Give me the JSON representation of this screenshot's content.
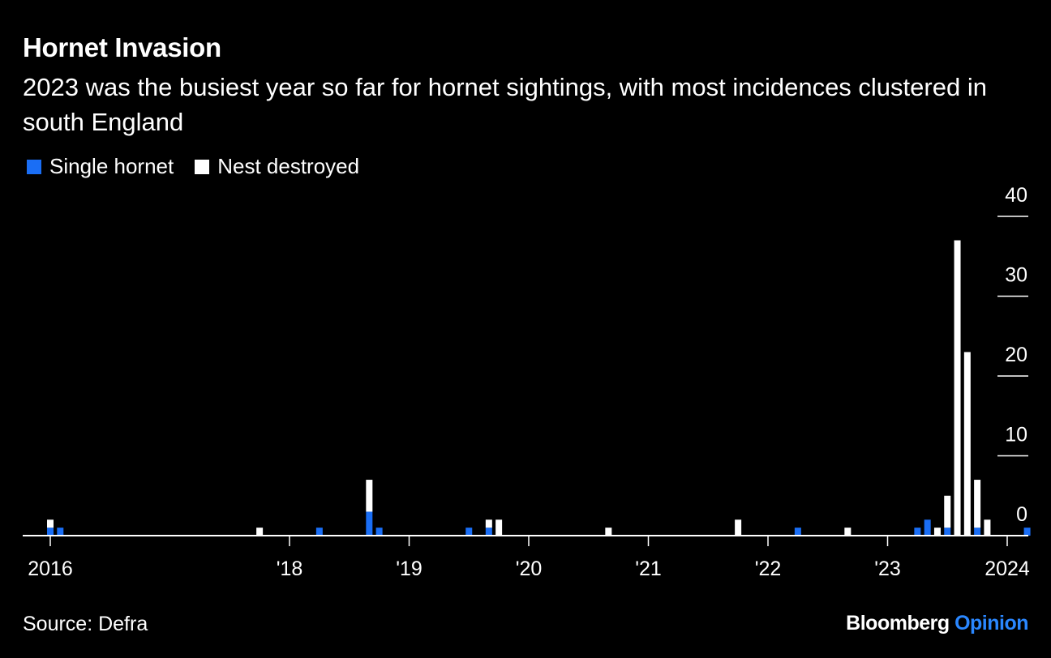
{
  "header": {
    "title": "Hornet Invasion",
    "subtitle": "2023 was the busiest year so far for hornet sightings, with most incidences clustered in south England"
  },
  "footer": {
    "source": "Source: Defra",
    "brand_main": "Bloomberg",
    "brand_accent": "Opinion"
  },
  "colors": {
    "background": "#000000",
    "single_hornet": "#1a6ef5",
    "nest_destroyed": "#ffffff",
    "brand_accent": "#2a87ff"
  },
  "chart_data": {
    "type": "bar",
    "stacked": true,
    "title": "Hornet Invasion",
    "subtitle": "2023 was the busiest year so far for hornet sightings, with most incidences clustered in south England",
    "xlabel": "",
    "ylabel": "",
    "ylim": [
      0,
      40
    ],
    "yticks": [
      0,
      10,
      20,
      30,
      40
    ],
    "y_axis_side": "right",
    "xlim": [
      2016.0,
      2024.5
    ],
    "xticks": [
      {
        "value": 2016,
        "label": "2016"
      },
      {
        "value": 2018,
        "label": "'18"
      },
      {
        "value": 2019,
        "label": "'19"
      },
      {
        "value": 2020,
        "label": "'20"
      },
      {
        "value": 2021,
        "label": "'21"
      },
      {
        "value": 2022,
        "label": "'22"
      },
      {
        "value": 2023,
        "label": "'23"
      },
      {
        "value": 2024,
        "label": "2024"
      }
    ],
    "legend": {
      "placement": "top-left"
    },
    "series": [
      {
        "name": "Single hornet",
        "color": "#1a6ef5",
        "points": [
          {
            "x": "2016-01",
            "value": 1
          },
          {
            "x": "2016-02",
            "value": 1
          },
          {
            "x": "2018-04",
            "value": 1
          },
          {
            "x": "2018-09",
            "value": 3
          },
          {
            "x": "2018-10",
            "value": 1
          },
          {
            "x": "2019-07",
            "value": 1
          },
          {
            "x": "2019-09",
            "value": 1
          },
          {
            "x": "2022-04",
            "value": 1
          },
          {
            "x": "2023-04",
            "value": 1
          },
          {
            "x": "2023-05",
            "value": 2
          },
          {
            "x": "2023-07",
            "value": 1
          },
          {
            "x": "2023-10",
            "value": 1
          },
          {
            "x": "2024-03",
            "value": 1
          }
        ]
      },
      {
        "name": "Nest destroyed",
        "color": "#ffffff",
        "points": [
          {
            "x": "2016-01",
            "value": 1
          },
          {
            "x": "2017-10",
            "value": 1
          },
          {
            "x": "2018-09",
            "value": 4
          },
          {
            "x": "2019-09",
            "value": 1
          },
          {
            "x": "2019-10",
            "value": 2
          },
          {
            "x": "2020-09",
            "value": 1
          },
          {
            "x": "2021-10",
            "value": 2
          },
          {
            "x": "2022-09",
            "value": 1
          },
          {
            "x": "2023-06",
            "value": 1
          },
          {
            "x": "2023-07",
            "value": 4
          },
          {
            "x": "2023-08",
            "value": 37
          },
          {
            "x": "2023-09",
            "value": 23
          },
          {
            "x": "2023-10",
            "value": 6
          },
          {
            "x": "2023-11",
            "value": 2
          }
        ]
      }
    ]
  }
}
